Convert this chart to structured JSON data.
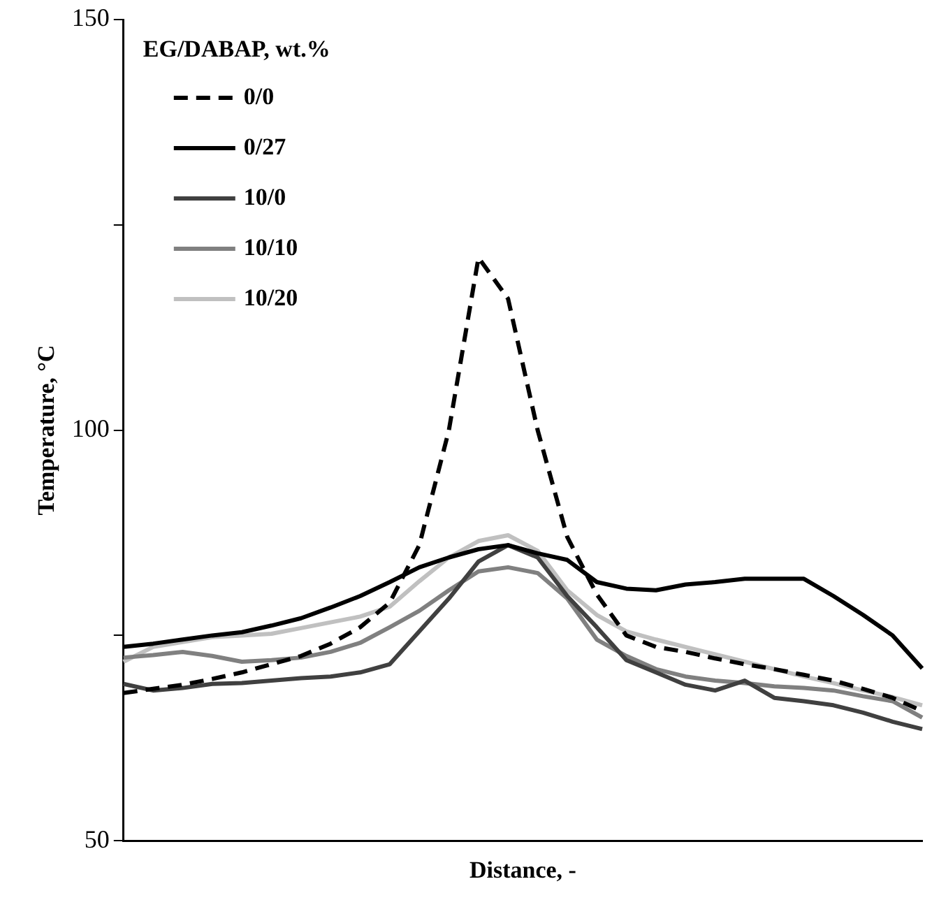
{
  "chart_data": {
    "type": "line",
    "xlabel": "Distance, -",
    "ylabel": "Temperature, °C",
    "legend_title": "EG/DABAP, wt.%",
    "legend": "top left",
    "grid": false,
    "tick_labels": "y",
    "marker": "none",
    "categories": [
      null,
      null,
      null,
      null,
      null,
      null,
      null,
      null,
      null,
      null,
      null,
      null,
      null,
      null,
      null,
      null,
      null,
      null,
      null,
      null,
      null,
      null,
      null,
      null,
      null,
      null,
      null,
      null
    ],
    "ylim": [
      50,
      150
    ],
    "yticks": [
      50,
      {
        "value": 75,
        "label": null
      },
      100,
      {
        "value": 125,
        "label": null
      },
      150
    ],
    "series": [
      {
        "name": "0/0",
        "color": "#000000",
        "line_style": "dashed",
        "values": [
          68,
          68.5,
          69,
          69.7,
          70.5,
          71.5,
          72.5,
          74,
          76,
          79,
          86,
          100,
          121,
          116,
          100,
          87,
          80,
          75,
          73.6,
          73,
          72.2,
          71.5,
          70.9,
          70.2,
          69.5,
          68.5,
          67.4,
          65.8
        ]
      },
      {
        "name": "0/27",
        "color": "#000000",
        "line_style": "solid",
        "values": [
          73.6,
          74,
          74.5,
          75,
          75.4,
          76.2,
          77.1,
          78.4,
          79.8,
          81.5,
          83.3,
          84.5,
          85.5,
          86,
          85,
          84.2,
          81.5,
          80.7,
          80.5,
          81.2,
          81.5,
          81.9,
          81.9,
          81.9,
          79.8,
          77.5,
          75,
          71
        ]
      },
      {
        "name": "10/0",
        "color": "#404040",
        "line_style": "solid",
        "values": [
          69.1,
          68.3,
          68.6,
          69.1,
          69.2,
          69.5,
          69.8,
          70,
          70.5,
          71.5,
          75.5,
          79.5,
          84,
          86,
          84.5,
          79.8,
          76,
          72,
          70.5,
          69,
          68.3,
          69.5,
          67.4,
          67,
          66.5,
          65.6,
          64.5,
          63.6
        ]
      },
      {
        "name": "10/10",
        "color": "#808080",
        "line_style": "solid",
        "values": [
          72.3,
          72.6,
          73,
          72.5,
          71.8,
          72,
          72.3,
          73,
          74.1,
          76,
          78,
          80.5,
          82.8,
          83.3,
          82.6,
          79.5,
          74.5,
          72.5,
          70.9,
          70,
          69.5,
          69.2,
          68.8,
          68.6,
          68.3,
          67.6,
          67,
          65
        ]
      },
      {
        "name": "10/20",
        "color": "#c0c0c0",
        "line_style": "solid",
        "values": [
          71.8,
          73.6,
          74.2,
          74.8,
          75,
          75.2,
          75.9,
          76.6,
          77.3,
          78.5,
          81.6,
          84.5,
          86.5,
          87.2,
          85.3,
          80.5,
          77.5,
          75.5,
          74.5,
          73.6,
          72.7,
          71.8,
          70.9,
          70,
          69.2,
          68.3,
          67.5,
          66.5
        ]
      }
    ]
  }
}
